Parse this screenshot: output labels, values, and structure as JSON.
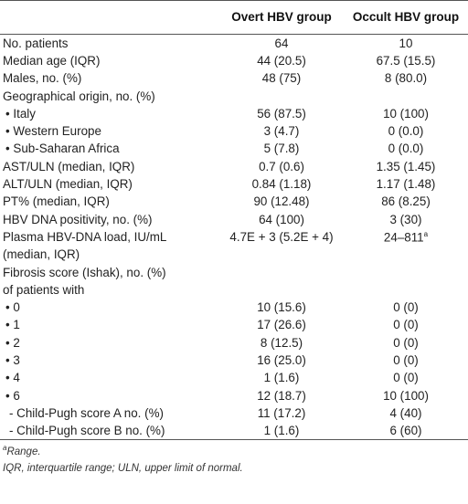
{
  "header": {
    "col1": "",
    "col2": "Overt HBV group",
    "col3": "Occult HBV group"
  },
  "rows": [
    {
      "label": "No. patients",
      "v1": "64",
      "v2": "10"
    },
    {
      "label": "Median age (IQR)",
      "v1": "44 (20.5)",
      "v2": "67.5 (15.5)"
    },
    {
      "label": "Males, no. (%)",
      "v1": "48 (75)",
      "v2": "8 (80.0)"
    },
    {
      "label": "Geographical origin, no. (%)",
      "v1": "",
      "v2": ""
    },
    {
      "label": "• Italy",
      "v1": "56 (87.5)",
      "v2": "10 (100)"
    },
    {
      "label": "• Western Europe",
      "v1": "3 (4.7)",
      "v2": "0 (0.0)"
    },
    {
      "label": "• Sub-Saharan Africa",
      "v1": "5 (7.8)",
      "v2": "0 (0.0)"
    },
    {
      "label": "AST/ULN (median, IQR)",
      "v1": "0.7 (0.6)",
      "v2": "1.35 (1.45)"
    },
    {
      "label": "ALT/ULN (median, IQR)",
      "v1": "0.84 (1.18)",
      "v2": "1.17 (1.48)"
    },
    {
      "label": "PT% (median, IQR)",
      "v1": "90 (12.48)",
      "v2": "86 (8.25)"
    },
    {
      "label": "HBV DNA positivity, no. (%)",
      "v1": "64 (100)",
      "v2": "3 (30)"
    },
    {
      "label": "Plasma HBV-DNA load, IU/mL",
      "v1": "4.7E + 3 (5.2E + 4)",
      "v2": "24–811",
      "v2_sup": "a"
    },
    {
      "label": "(median, IQR)",
      "v1": "",
      "v2": ""
    },
    {
      "label": "Fibrosis score (Ishak), no. (%)",
      "v1": "",
      "v2": ""
    },
    {
      "label": "of patients with",
      "v1": "",
      "v2": ""
    },
    {
      "label": "• 0",
      "v1": "10 (15.6)",
      "v2": "0 (0)"
    },
    {
      "label": "• 1",
      "v1": "17 (26.6)",
      "v2": "0 (0)"
    },
    {
      "label": "• 2",
      "v1": "8 (12.5)",
      "v2": "0 (0)"
    },
    {
      "label": "• 3",
      "v1": "16 (25.0)",
      "v2": "0 (0)"
    },
    {
      "label": "• 4",
      "v1": "1 (1.6)",
      "v2": "0 (0)"
    },
    {
      "label": "• 6",
      "v1": "12 (18.7)",
      "v2": "10 (100)"
    },
    {
      "label": "- Child-Pugh score A no. (%)",
      "v1": "11 (17.2)",
      "v2": "4 (40)"
    },
    {
      "label": "- Child-Pugh score B no. (%)",
      "v1": "1 (1.6)",
      "v2": "6 (60)"
    }
  ],
  "footnotes": {
    "range_mark": "a",
    "range_text": "Range.",
    "abbrev": "IQR, interquartile range; ULN, upper limit of normal."
  }
}
